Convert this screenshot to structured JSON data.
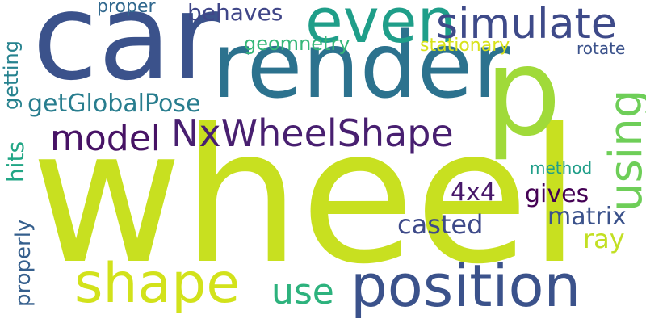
{
  "words": [
    {
      "text": "wheel",
      "color": "#c8e020"
    },
    {
      "text": "car",
      "color": "#3b528b"
    },
    {
      "text": "render",
      "color": "#2c728e"
    },
    {
      "text": "p",
      "color": "#a0da39"
    },
    {
      "text": "even",
      "color": "#1f9e89"
    },
    {
      "text": "simulate",
      "color": "#3e4a89"
    },
    {
      "text": "behaves",
      "color": "#404688"
    },
    {
      "text": "proper",
      "color": "#31688e"
    },
    {
      "text": "geomnetry",
      "color": "#35b779"
    },
    {
      "text": "stationary",
      "color": "#d8e219"
    },
    {
      "text": "rotate",
      "color": "#3b528b"
    },
    {
      "text": "getGlobalPose",
      "color": "#287d8e"
    },
    {
      "text": "model",
      "color": "#471365"
    },
    {
      "text": "NxWheelShape",
      "color": "#481f70"
    },
    {
      "text": "method",
      "color": "#1f9e89"
    },
    {
      "text": "4x4",
      "color": "#48186a"
    },
    {
      "text": "gives",
      "color": "#440154"
    },
    {
      "text": "casted",
      "color": "#3e4a89"
    },
    {
      "text": "matrix",
      "color": "#3b528b"
    },
    {
      "text": "ray",
      "color": "#c2df23"
    },
    {
      "text": "shape",
      "color": "#d2e21b"
    },
    {
      "text": "use",
      "color": "#2db27d"
    },
    {
      "text": "position",
      "color": "#3b528b"
    },
    {
      "text": "using",
      "color": "#6ece58"
    },
    {
      "text": "hits",
      "color": "#21a685"
    },
    {
      "text": "getting",
      "color": "#26828e"
    },
    {
      "text": "properly",
      "color": "#355f8d"
    }
  ]
}
